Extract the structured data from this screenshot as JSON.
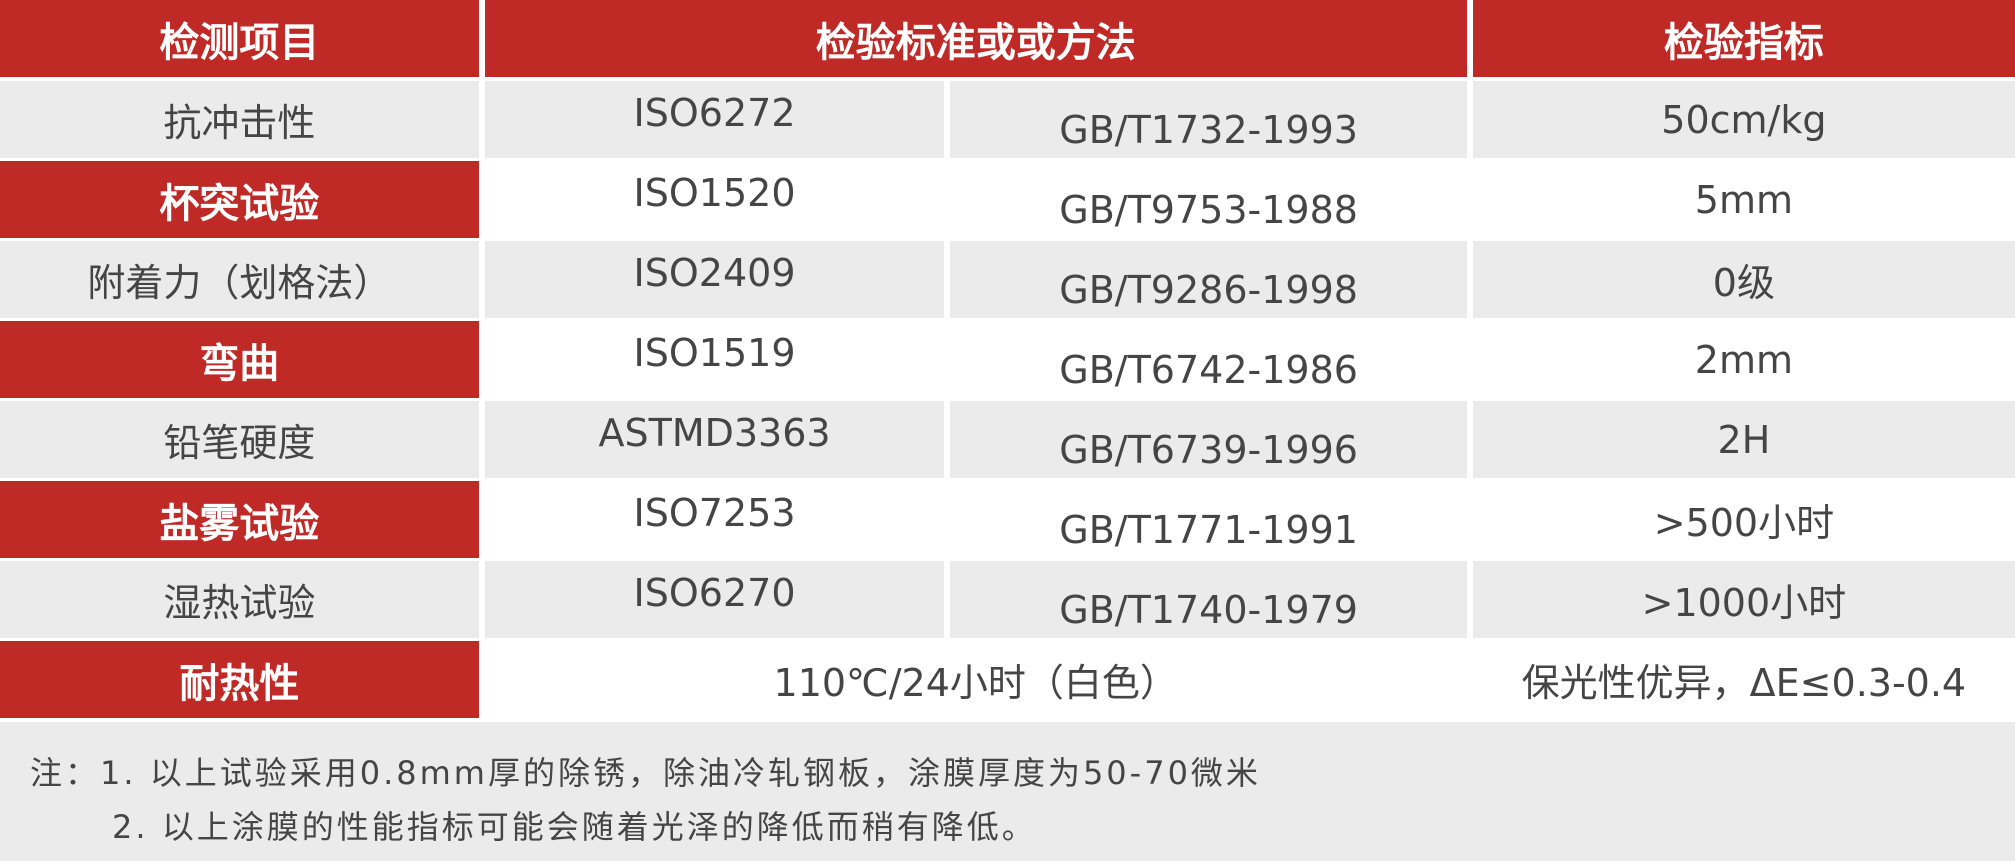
{
  "header": {
    "item": "检测项目",
    "standard": "检验标准或或方法",
    "index": "检验指标"
  },
  "rows": [
    {
      "item": "抗冲击性",
      "iso": "ISO6272",
      "gb": "GB/T1732-1993",
      "value": "50cm/kg"
    },
    {
      "item": "杯突试验",
      "iso": "ISO1520",
      "gb": "GB/T9753-1988",
      "value": "5mm"
    },
    {
      "item": "附着力（划格法）",
      "iso": "ISO2409",
      "gb": "GB/T9286-1998",
      "value": "0级"
    },
    {
      "item": "弯曲",
      "iso": "ISO1519",
      "gb": "GB/T6742-1986",
      "value": "2mm"
    },
    {
      "item": "铅笔硬度",
      "iso": "ASTMD3363",
      "gb": "GB/T6739-1996",
      "value": "2H"
    },
    {
      "item": "盐雾试验",
      "iso": "ISO7253",
      "gb": "GB/T1771-1991",
      "value": ">500小时"
    },
    {
      "item": "湿热试验",
      "iso": "ISO6270",
      "gb": "GB/T1740-1979",
      "value": ">1000小时"
    },
    {
      "item": "耐热性",
      "method": "110℃/24小时（白色）",
      "value": "保光性优异，ΔE≤0.3-0.4"
    }
  ],
  "notes": {
    "line1": "注：1. 以上试验采用0.8mm厚的除锈，除油冷轧钢板，涂膜厚度为50-70微米",
    "line2": "2. 以上涂膜的性能指标可能会随着光泽的降低而稍有降低。"
  },
  "colors": {
    "accent": "#bf2a27",
    "stripe": "#ebebeb",
    "text": "#454545"
  }
}
